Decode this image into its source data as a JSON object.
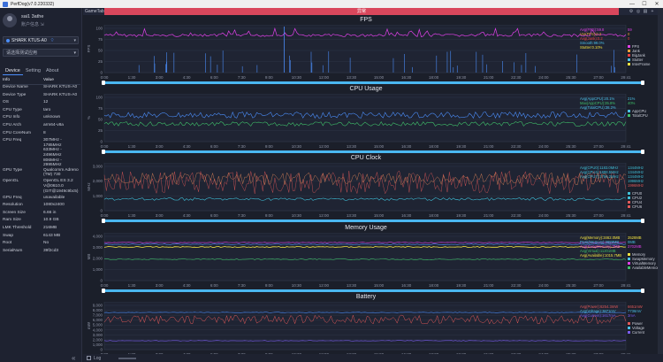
{
  "window": {
    "title": "PerfDog(v7.0.220332)",
    "controls": [
      "—",
      "☐",
      "✕"
    ]
  },
  "user": {
    "name": "sai1 3athe",
    "link": "账户信息 ⇲"
  },
  "device": {
    "name": "SHARK KTUS-A0",
    "dropdown_icon": "chevron-down-icon",
    "conn_icon": "wifi-icon"
  },
  "app_select": {
    "placeholder": "请选择测试应用"
  },
  "side_tabs": [
    {
      "label": "Device",
      "active": true
    },
    {
      "label": "Setting",
      "active": false
    },
    {
      "label": "About",
      "active": false
    }
  ],
  "info_table": {
    "headers": [
      "Info",
      "Value"
    ],
    "rows": [
      {
        "k": "Device Name",
        "v": "SHARK KTUS-A0"
      },
      {
        "k": "Device Type",
        "v": "SHARK KTUS-A0"
      },
      {
        "k": "OS",
        "v": "12"
      },
      {
        "k": "CPU Type",
        "v": "taro"
      },
      {
        "k": "CPU Info",
        "v": "unknown"
      },
      {
        "k": "CPU Arch",
        "v": "arm64-v8a"
      },
      {
        "k": "CPU CoreNum",
        "v": "8"
      },
      {
        "k": "CPU Freq",
        "v": "307MHz - 1785MHz\n633MHz - 2496MHz\n806MHz - 2995MHz"
      },
      {
        "k": "GPU Type",
        "v": "Qualcomm Adreno\n(TM) 730"
      },
      {
        "k": "OpenGL",
        "v": "OpenGL ES 3.2\nV@0610.0\n(GIT@1949c9bc5)"
      },
      {
        "k": "GPU Freq",
        "v": "unavailable"
      },
      {
        "k": "Resolution",
        "v": "1080x2400"
      },
      {
        "k": "Screen Size",
        "v": "6.66 in"
      },
      {
        "k": "Ram Size",
        "v": "10.9 GB"
      },
      {
        "k": "LMK Threshold",
        "v": "216MB"
      },
      {
        "k": "Swap",
        "v": "6143 MB"
      },
      {
        "k": "Root",
        "v": "No"
      },
      {
        "k": "SerialNum",
        "v": "39f2cd3"
      }
    ]
  },
  "top_strip": {
    "tab": "GameTab",
    "recording": "异常"
  },
  "time_ticks": [
    "0:00",
    "1:30",
    "3:00",
    "4:30",
    "6:00",
    "7:30",
    "9:00",
    "10:30",
    "12:00",
    "13:30",
    "15:00",
    "16:30",
    "18:00",
    "19:30",
    "21:00",
    "22:30",
    "24:00",
    "25:30",
    "27:00",
    "29:41"
  ],
  "panels": [
    {
      "id": "fps",
      "title": "FPS",
      "yticks": [
        "0",
        "25",
        "50",
        "75",
        "100"
      ],
      "ylabel": "FPS",
      "legend": [
        {
          "label": "FPS",
          "color": "#e040e8"
        },
        {
          "label": "Jank",
          "color": "#f0a23b"
        },
        {
          "label": "BigJank",
          "color": "#e84040"
        },
        {
          "label": "Stutter",
          "color": "#4bc0e8"
        },
        {
          "label": "InterFrame",
          "color": "#f0e040"
        }
      ],
      "overlay": [
        "Avg(FPS):59.8",
        "Var(FPS):0.3",
        "Avg(Jank):0.2",
        "Smooth:99.0%",
        "Stutter:0.10%"
      ],
      "values": {
        "FPS": "59",
        "Jank": "0",
        "BigJank": "0"
      }
    },
    {
      "id": "cpu",
      "title": "CPU Usage",
      "yticks": [
        "0",
        "25",
        "50",
        "75",
        "100"
      ],
      "ylabel": "%",
      "legend": [
        {
          "label": "AppCPU",
          "color": "#4bc0e8"
        },
        {
          "label": "TotalCPU",
          "color": "#3fbf6a"
        }
      ],
      "overlay": [
        "Avg(AppCPU):20.1%",
        "Max(AppCPU):35.8%",
        "Avg(TotalCPU):38.2%"
      ],
      "values": {
        "AppCPU": "21%",
        "TotalCPU": "40%"
      }
    },
    {
      "id": "cpuclock",
      "title": "CPU Clock",
      "yticks": [
        "0",
        "1,000",
        "2,000",
        "3,000"
      ],
      "ylabel": "MHz",
      "legend": [
        {
          "label": "CPU0",
          "color": "#3fbfd8"
        },
        {
          "label": "CPU1",
          "color": "#3fbfd8"
        },
        {
          "label": "CPU2",
          "color": "#3fbfd8"
        },
        {
          "label": "CPU3",
          "color": "#3fbfd8"
        },
        {
          "label": "CPU4",
          "color": "#e05858"
        },
        {
          "label": "CPU5",
          "color": "#e05858"
        },
        {
          "label": "CPU6",
          "color": "#e05858"
        },
        {
          "label": "CPU7",
          "color": "#e88a5a"
        }
      ],
      "overlay": [
        "Avg(CPU0):1183.0MHz",
        "Avg(CPU4):1698.5MHz",
        "Avg(CPU7):1756.2MHz"
      ],
      "values": {
        "c0": "1344MHz",
        "c1": "1344MHz",
        "c2": "1344MHz",
        "c4": "1996MHz",
        "c7": "1996MHz"
      }
    },
    {
      "id": "memory",
      "title": "Memory Usage",
      "yticks": [
        "0",
        "1,000",
        "2,000",
        "3,000",
        "4,000"
      ],
      "ylabel": "MB",
      "legend": [
        {
          "label": "Memory",
          "color": "#f0e040"
        },
        {
          "label": "SwapMemory",
          "color": "#4bc0e8"
        },
        {
          "label": "VirtualMemory",
          "color": "#e040e8"
        },
        {
          "label": "AvailableMemory",
          "color": "#3fbf6a"
        }
      ],
      "overlay": [
        "Avg(Memory):3462.0MB",
        "Peak(Memory):3689MB",
        "Avg(SwapMemory):0MB",
        "Avg(Virtual):11201MB",
        "Avg(Available):1015.7MB"
      ],
      "values": {
        "Memory": "3528MB",
        "Swap": "0MB",
        "Avail": "3702MB"
      }
    },
    {
      "id": "battery",
      "title": "Battery",
      "yticks": [
        "0",
        "1,000",
        "2,000",
        "3,000",
        "4,000",
        "5,000",
        "6,000",
        "7,000",
        "8,000",
        "9,000"
      ],
      "ylabel": "mW",
      "legend": [
        {
          "label": "Power",
          "color": "#e05858"
        },
        {
          "label": "Voltage",
          "color": "#4bc0e8"
        },
        {
          "label": "Current",
          "color": "#7a5cf0"
        }
      ],
      "overlay": [
        "Avg(Power):6254.3mW",
        "Avg(Voltage):3871mV",
        "Avg(Current):1617mA"
      ],
      "values": {
        "Power": "6651mW",
        "Voltage": "7736mV",
        "Current": "3mA"
      }
    }
  ],
  "bottom": {
    "log_label": "Log"
  }
}
